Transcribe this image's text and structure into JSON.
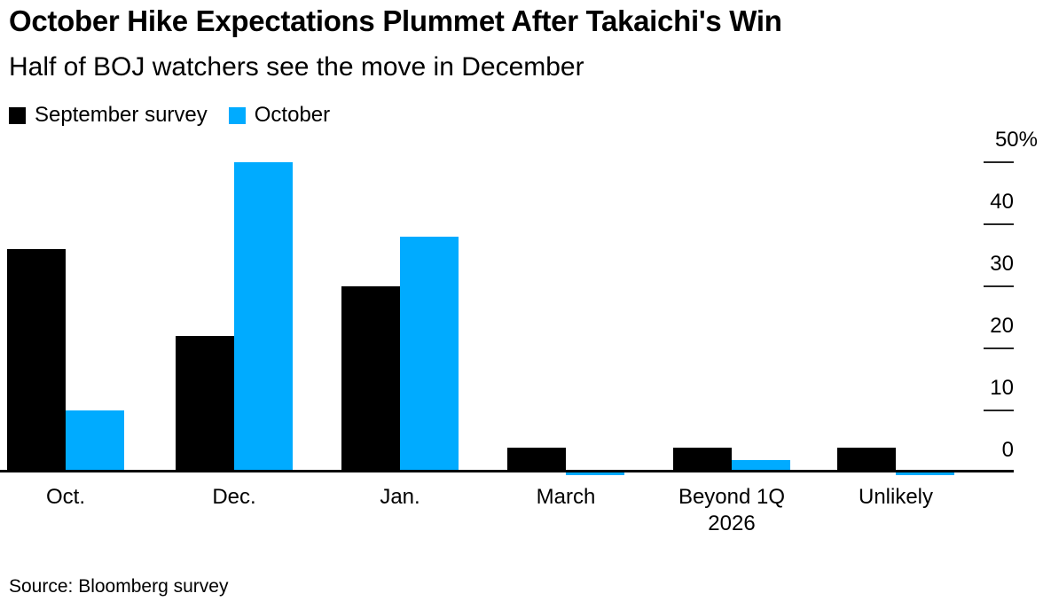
{
  "header": {
    "title": "October Hike Expectations Plummet After Takaichi's Win",
    "subtitle": "Half of BOJ watchers see the move in December"
  },
  "chart_data": {
    "type": "bar",
    "categories": [
      "Oct.",
      "Dec.",
      "Jan.",
      "March",
      "Beyond 1Q 2026",
      "Unlikely"
    ],
    "series": [
      {
        "name": "September survey",
        "color": "#000000",
        "values": [
          36,
          22,
          30,
          4,
          4,
          4
        ]
      },
      {
        "name": "October",
        "color": "#00abff",
        "values": [
          10,
          50,
          38,
          0,
          2,
          0
        ]
      }
    ],
    "unit": "%",
    "ylim": [
      0,
      50
    ],
    "yticks": [
      {
        "value": 0,
        "label": "0"
      },
      {
        "value": 10,
        "label": "10"
      },
      {
        "value": 20,
        "label": "20"
      },
      {
        "value": 30,
        "label": "30"
      },
      {
        "value": 40,
        "label": "40"
      },
      {
        "value": 50,
        "label": "50%"
      }
    ],
    "grid": false,
    "legend_position": "top-left",
    "axis_side": "right"
  },
  "footer": {
    "source": "Source: Bloomberg survey"
  }
}
